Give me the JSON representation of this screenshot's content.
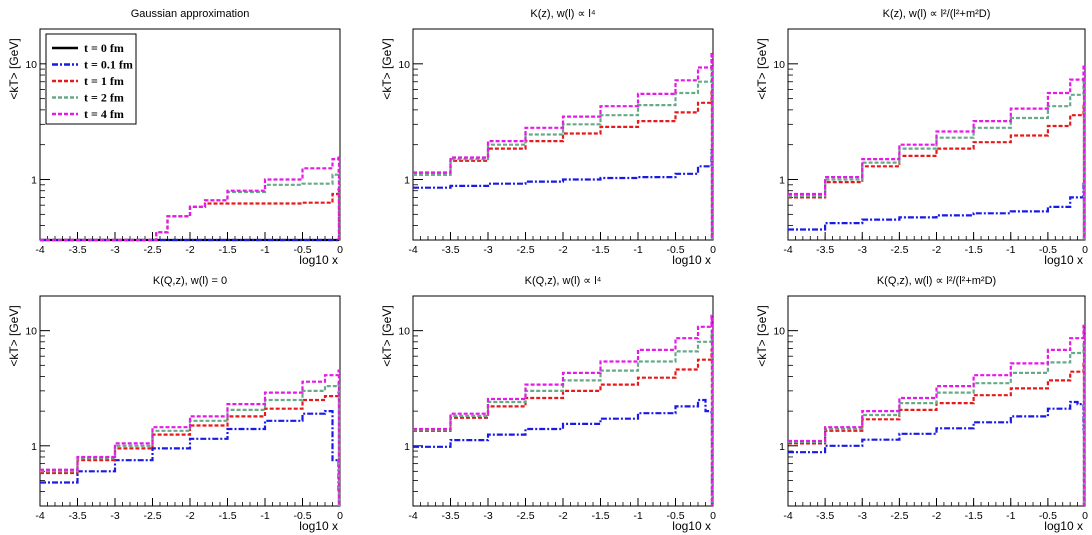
{
  "colors": {
    "t0": "#000000",
    "t01": "#1a1ae6",
    "t1": "#e61a1a",
    "t2": "#66aa88",
    "t4": "#e61ae6"
  },
  "legend": [
    {
      "label": "t = 0 fm",
      "color": "#000000",
      "style": "solid"
    },
    {
      "label": "t = 0.1 fm",
      "color": "#1a1ae6",
      "style": "dashdot"
    },
    {
      "label": "t = 1 fm",
      "color": "#e61a1a",
      "style": "dashed"
    },
    {
      "label": "t = 2 fm",
      "color": "#66aa88",
      "style": "dashed"
    },
    {
      "label": "t = 4 fm",
      "color": "#e61ae6",
      "style": "dashed"
    }
  ],
  "chart_data": [
    {
      "type": "line",
      "title": "Gaussian approximation",
      "xlabel": "log10 x",
      "ylabel": "<kT> [GeV]",
      "xlim": [
        -4,
        0
      ],
      "ylim": [
        0.3,
        20
      ],
      "yscale": "log",
      "xticks": [
        "-4",
        "-3.5",
        "-3",
        "-2.5",
        "-2",
        "-1.5",
        "-1",
        "-0.5",
        "0"
      ],
      "yticks": [
        "1",
        "10"
      ],
      "series": [
        {
          "name": "t = 0 fm",
          "x": [
            -4,
            -2.5,
            -2.45,
            -2.3,
            -2.0,
            -1.8,
            -1.5,
            -1.0,
            -0.5,
            -0.1,
            -0.02
          ],
          "y": [
            0.3,
            0.3,
            0.3,
            0.3,
            0.3,
            0.3,
            0.3,
            0.3,
            0.3,
            0.3,
            0.3
          ]
        },
        {
          "name": "t = 0.1 fm",
          "x": [
            -4,
            -2.5,
            -2.45,
            -2.3,
            -2.0,
            -1.8,
            -1.5,
            -1.0,
            -0.5,
            -0.1,
            -0.02
          ],
          "y": [
            0.3,
            0.3,
            0.3,
            0.3,
            0.3,
            0.3,
            0.3,
            0.3,
            0.3,
            0.3,
            0.3
          ]
        },
        {
          "name": "t = 1 fm",
          "x": [
            -4,
            -2.5,
            -2.45,
            -2.3,
            -2.0,
            -1.8,
            -1.5,
            -1.0,
            -0.5,
            -0.1,
            -0.02
          ],
          "y": [
            0.3,
            0.3,
            0.35,
            0.48,
            0.58,
            0.62,
            0.62,
            0.62,
            0.63,
            0.75,
            0.82
          ]
        },
        {
          "name": "t = 2 fm",
          "x": [
            -4,
            -2.5,
            -2.45,
            -2.3,
            -2.0,
            -1.8,
            -1.5,
            -1.0,
            -0.5,
            -0.1,
            -0.02
          ],
          "y": [
            0.3,
            0.3,
            0.35,
            0.48,
            0.58,
            0.66,
            0.78,
            0.9,
            0.92,
            1.1,
            1.2
          ]
        },
        {
          "name": "t = 4 fm",
          "x": [
            -4,
            -2.5,
            -2.45,
            -2.3,
            -2.0,
            -1.8,
            -1.5,
            -1.0,
            -0.5,
            -0.1,
            -0.02
          ],
          "y": [
            0.3,
            0.3,
            0.35,
            0.48,
            0.58,
            0.66,
            0.8,
            1.0,
            1.25,
            1.5,
            1.6
          ]
        }
      ]
    },
    {
      "type": "line",
      "title": "K(z), w(l) ∝ l⁴",
      "xlabel": "log10 x",
      "ylabel": "<kT> [GeV]",
      "xlim": [
        -4,
        0
      ],
      "ylim": [
        0.3,
        20
      ],
      "yscale": "log",
      "xticks": [
        "-4",
        "-3.5",
        "-3",
        "-2.5",
        "-2",
        "-1.5",
        "-1",
        "-0.5",
        "0"
      ],
      "yticks": [
        "1",
        "10"
      ],
      "series": [
        {
          "name": "t = 0.1 fm",
          "x": [
            -4,
            -3.5,
            -3,
            -2.5,
            -2,
            -1.5,
            -1,
            -0.5,
            -0.2,
            -0.02
          ],
          "y": [
            0.85,
            0.88,
            0.92,
            0.96,
            1.0,
            1.03,
            1.05,
            1.12,
            1.3,
            1.8
          ]
        },
        {
          "name": "t = 1 fm",
          "x": [
            -4,
            -3.5,
            -3,
            -2.5,
            -2,
            -1.5,
            -1,
            -0.5,
            -0.2,
            -0.02
          ],
          "y": [
            1.1,
            1.45,
            1.85,
            2.15,
            2.5,
            2.85,
            3.2,
            3.8,
            4.6,
            6.0
          ]
        },
        {
          "name": "t = 2 fm",
          "x": [
            -4,
            -3.5,
            -3,
            -2.5,
            -2,
            -1.5,
            -1,
            -0.5,
            -0.2,
            -0.02
          ],
          "y": [
            1.1,
            1.5,
            2.0,
            2.45,
            3.0,
            3.6,
            4.4,
            5.6,
            7.0,
            9.5
          ]
        },
        {
          "name": "t = 4 fm",
          "x": [
            -4,
            -3.5,
            -3,
            -2.5,
            -2,
            -1.5,
            -1,
            -0.5,
            -0.2,
            -0.02
          ],
          "y": [
            1.15,
            1.55,
            2.15,
            2.8,
            3.5,
            4.3,
            5.5,
            7.2,
            9.3,
            12.5
          ]
        }
      ]
    },
    {
      "type": "line",
      "title": "K(z), w(l) ∝ l²/(l²+m²D)",
      "xlabel": "log10 x",
      "ylabel": "<kT> [GeV]",
      "xlim": [
        -4,
        0
      ],
      "ylim": [
        0.3,
        20
      ],
      "yscale": "log",
      "xticks": [
        "-4",
        "-3.5",
        "-3",
        "-2.5",
        "-2",
        "-1.5",
        "-1",
        "-0.5",
        "0"
      ],
      "yticks": [
        "1",
        "10"
      ],
      "series": [
        {
          "name": "t = 0.1 fm",
          "x": [
            -4,
            -3.5,
            -3,
            -2.5,
            -2,
            -1.5,
            -1,
            -0.5,
            -0.2,
            -0.02
          ],
          "y": [
            0.37,
            0.42,
            0.45,
            0.47,
            0.49,
            0.51,
            0.53,
            0.58,
            0.7,
            0.95
          ]
        },
        {
          "name": "t = 1 fm",
          "x": [
            -4,
            -3.5,
            -3,
            -2.5,
            -2,
            -1.5,
            -1,
            -0.5,
            -0.2,
            -0.02
          ],
          "y": [
            0.7,
            0.95,
            1.3,
            1.6,
            1.85,
            2.1,
            2.4,
            2.9,
            3.6,
            4.5
          ]
        },
        {
          "name": "t = 2 fm",
          "x": [
            -4,
            -3.5,
            -3,
            -2.5,
            -2,
            -1.5,
            -1,
            -0.5,
            -0.2,
            -0.02
          ],
          "y": [
            0.72,
            1.0,
            1.4,
            1.85,
            2.3,
            2.8,
            3.4,
            4.3,
            5.4,
            7.0
          ]
        },
        {
          "name": "t = 4 fm",
          "x": [
            -4,
            -3.5,
            -3,
            -2.5,
            -2,
            -1.5,
            -1,
            -0.5,
            -0.2,
            -0.02
          ],
          "y": [
            0.75,
            1.05,
            1.5,
            2.0,
            2.6,
            3.2,
            4.1,
            5.6,
            7.3,
            9.8
          ]
        }
      ]
    },
    {
      "type": "line",
      "title": "K(Q,z), w(l) = 0",
      "xlabel": "log10 x",
      "ylabel": "<kT> [GeV]",
      "xlim": [
        -4,
        0
      ],
      "ylim": [
        0.3,
        20
      ],
      "yscale": "log",
      "xticks": [
        "-4",
        "-3.5",
        "-3",
        "-2.5",
        "-2",
        "-1.5",
        "-1",
        "-0.5",
        "0"
      ],
      "yticks": [
        "1",
        "10"
      ],
      "series": [
        {
          "name": "t = 0.1 fm",
          "x": [
            -4,
            -3.5,
            -3,
            -2.5,
            -2,
            -1.5,
            -1,
            -0.5,
            -0.2,
            -0.1,
            -0.02
          ],
          "y": [
            0.48,
            0.6,
            0.75,
            0.95,
            1.15,
            1.4,
            1.65,
            1.9,
            2.0,
            0.75,
            0.4
          ]
        },
        {
          "name": "t = 1 fm",
          "x": [
            -4,
            -3.5,
            -3,
            -2.5,
            -2,
            -1.5,
            -1,
            -0.5,
            -0.2,
            -0.02
          ],
          "y": [
            0.58,
            0.75,
            0.95,
            1.25,
            1.5,
            1.8,
            2.1,
            2.5,
            2.7,
            2.9
          ]
        },
        {
          "name": "t = 2 fm",
          "x": [
            -4,
            -3.5,
            -3,
            -2.5,
            -2,
            -1.5,
            -1,
            -0.5,
            -0.2,
            -0.02
          ],
          "y": [
            0.6,
            0.78,
            1.0,
            1.35,
            1.65,
            2.05,
            2.5,
            3.0,
            3.3,
            3.6
          ]
        },
        {
          "name": "t = 4 fm",
          "x": [
            -4,
            -3.5,
            -3,
            -2.5,
            -2,
            -1.5,
            -1,
            -0.5,
            -0.2,
            -0.02
          ],
          "y": [
            0.62,
            0.8,
            1.05,
            1.45,
            1.8,
            2.3,
            2.9,
            3.6,
            4.1,
            4.5
          ]
        }
      ]
    },
    {
      "type": "line",
      "title": "K(Q,z), w(l) ∝ l⁴",
      "xlabel": "log10 x",
      "ylabel": "<kT> [GeV]",
      "xlim": [
        -4,
        0
      ],
      "ylim": [
        0.3,
        20
      ],
      "yscale": "log",
      "xticks": [
        "-4",
        "-3.5",
        "-3",
        "-2.5",
        "-2",
        "-1.5",
        "-1",
        "-0.5",
        "0"
      ],
      "yticks": [
        "1",
        "10"
      ],
      "series": [
        {
          "name": "t = 0.1 fm",
          "x": [
            -4,
            -3.5,
            -3,
            -2.5,
            -2,
            -1.5,
            -1,
            -0.5,
            -0.2,
            -0.1,
            -0.02
          ],
          "y": [
            0.98,
            1.12,
            1.25,
            1.4,
            1.55,
            1.72,
            1.92,
            2.2,
            2.5,
            2.0,
            1.95
          ]
        },
        {
          "name": "t = 1 fm",
          "x": [
            -4,
            -3.5,
            -3,
            -2.5,
            -2,
            -1.5,
            -1,
            -0.5,
            -0.2,
            -0.02
          ],
          "y": [
            1.35,
            1.75,
            2.2,
            2.6,
            3.0,
            3.4,
            3.9,
            4.6,
            5.6,
            6.8
          ]
        },
        {
          "name": "t = 2 fm",
          "x": [
            -4,
            -3.5,
            -3,
            -2.5,
            -2,
            -1.5,
            -1,
            -0.5,
            -0.2,
            -0.02
          ],
          "y": [
            1.38,
            1.82,
            2.4,
            3.0,
            3.7,
            4.5,
            5.4,
            6.6,
            8.0,
            9.8
          ]
        },
        {
          "name": "t = 4 fm",
          "x": [
            -4,
            -3.5,
            -3,
            -2.5,
            -2,
            -1.5,
            -1,
            -0.5,
            -0.2,
            -0.02
          ],
          "y": [
            1.4,
            1.9,
            2.55,
            3.4,
            4.3,
            5.4,
            6.8,
            8.6,
            10.8,
            13.5
          ]
        }
      ]
    },
    {
      "type": "line",
      "title": "K(Q,z), w(l) ∝ l²/(l²+m²D)",
      "xlabel": "log10 x",
      "ylabel": "<kT> [GeV]",
      "xlim": [
        -4,
        0
      ],
      "ylim": [
        0.3,
        20
      ],
      "yscale": "log",
      "xticks": [
        "-4",
        "-3.5",
        "-3",
        "-2.5",
        "-2",
        "-1.5",
        "-1",
        "-0.5",
        "0"
      ],
      "yticks": [
        "1",
        "10"
      ],
      "series": [
        {
          "name": "t = 0.1 fm",
          "x": [
            -4,
            -3.5,
            -3,
            -2.5,
            -2,
            -1.5,
            -1,
            -0.5,
            -0.2,
            -0.1,
            -0.02
          ],
          "y": [
            0.88,
            1.0,
            1.13,
            1.27,
            1.42,
            1.6,
            1.8,
            2.1,
            2.4,
            2.3,
            1.4
          ]
        },
        {
          "name": "t = 1 fm",
          "x": [
            -4,
            -3.5,
            -3,
            -2.5,
            -2,
            -1.5,
            -1,
            -0.5,
            -0.2,
            -0.02
          ],
          "y": [
            1.05,
            1.35,
            1.7,
            2.05,
            2.35,
            2.75,
            3.15,
            3.7,
            4.4,
            5.3
          ]
        },
        {
          "name": "t = 2 fm",
          "x": [
            -4,
            -3.5,
            -3,
            -2.5,
            -2,
            -1.5,
            -1,
            -0.5,
            -0.2,
            -0.02
          ],
          "y": [
            1.08,
            1.4,
            1.85,
            2.35,
            2.9,
            3.5,
            4.3,
            5.3,
            6.4,
            7.8
          ]
        },
        {
          "name": "t = 4 fm",
          "x": [
            -4,
            -3.5,
            -3,
            -2.5,
            -2,
            -1.5,
            -1,
            -0.5,
            -0.2,
            -0.02
          ],
          "y": [
            1.1,
            1.45,
            2.0,
            2.6,
            3.3,
            4.1,
            5.2,
            6.8,
            8.6,
            11.0
          ]
        }
      ]
    }
  ]
}
